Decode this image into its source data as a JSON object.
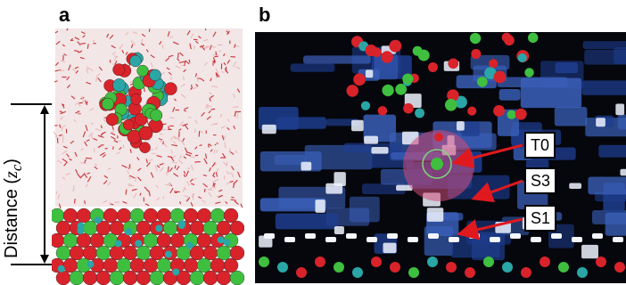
{
  "panels": {
    "a": {
      "letter": "a"
    },
    "b": {
      "letter": "b"
    }
  },
  "distance_label": {
    "prefix": "Distance (",
    "variable": "z",
    "subscript": "c",
    "suffix": ")"
  },
  "site_labels": [
    "T0",
    "S3",
    "S1"
  ],
  "colors": {
    "oxygen_red": "#d8232a",
    "calcium_green": "#3fbf3f",
    "carbon_teal": "#2aa6a6",
    "water_background": "#f3e6e6",
    "density_blue": "#1e3d8f",
    "arrow_red": "#e0191f",
    "highlight_pink": "#d14c7a"
  }
}
